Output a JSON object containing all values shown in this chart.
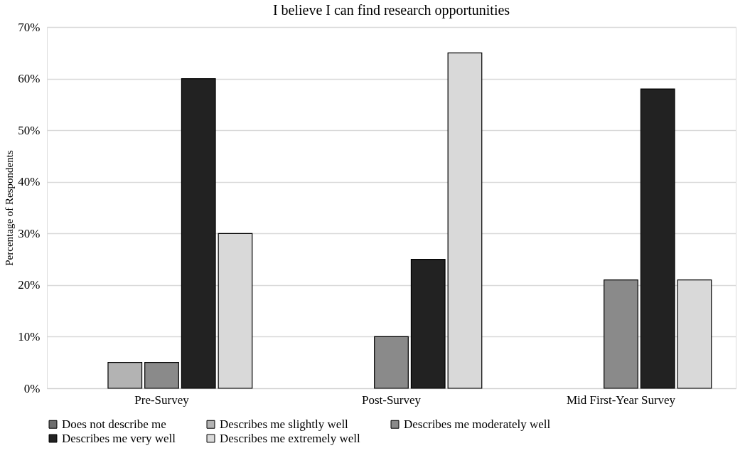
{
  "chart_data": {
    "type": "bar",
    "title": "I believe I can find research opportunities",
    "ylabel": "Percentage of Respondents",
    "categories": [
      "Pre-Survey",
      "Post-Survey",
      "Mid First-Year Survey"
    ],
    "series": [
      {
        "name": "Does not describe me",
        "color": "#6e6e6e",
        "values": [
          0,
          0,
          0
        ]
      },
      {
        "name": "Describes me slightly well",
        "color": "#b3b3b3",
        "values": [
          5,
          0,
          0
        ]
      },
      {
        "name": "Describes me moderately well",
        "color": "#8a8a8a",
        "values": [
          5,
          10,
          21
        ]
      },
      {
        "name": "Describes me very well",
        "color": "#222222",
        "values": [
          60,
          25,
          58
        ]
      },
      {
        "name": "Describes me extremely well",
        "color": "#d9d9d9",
        "values": [
          30,
          65,
          21
        ]
      }
    ],
    "ylim": [
      0,
      70
    ],
    "yticks": [
      {
        "value": 0,
        "label": "0%"
      },
      {
        "value": 10,
        "label": "10%"
      },
      {
        "value": 20,
        "label": "20%"
      },
      {
        "value": 30,
        "label": "30%"
      },
      {
        "value": 40,
        "label": "40%"
      },
      {
        "value": 50,
        "label": "50%"
      },
      {
        "value": 60,
        "label": "60%"
      },
      {
        "value": 70,
        "label": "70%"
      }
    ],
    "grid": "y",
    "legend": "bottom"
  }
}
